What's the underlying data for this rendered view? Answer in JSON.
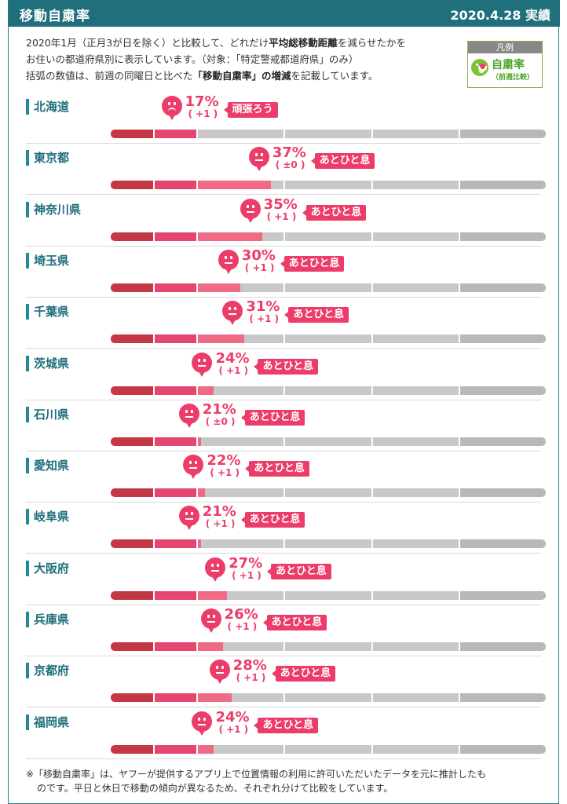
{
  "header": {
    "title": "移動自粛率",
    "date": "2020.4.28 実績"
  },
  "intro": {
    "line1_pre": "2020年1月（正月3が日を除く）と比較して、どれだけ",
    "line1_bold": "平均総移動距離",
    "line1_post": "を減らせたかを",
    "line2": "お住いの都道府県別に表示しています。（対象：「特定警戒都道府県」のみ）",
    "line3_pre": "括弧の数値は、前週の同曜日と比べた",
    "line3_bold": "「移動自粛率」の増減",
    "line3_post": "を記載しています。"
  },
  "legend": {
    "header": "凡例",
    "label": "自粛率",
    "sub": "（前週比較）"
  },
  "colors": {
    "header_bg": "#1f6f7d",
    "accent": "#ec3d6a",
    "seg1": "#c43845",
    "seg2": "#e4466f",
    "seg3": "#f06a86",
    "gray": "#c8c8c8",
    "gray2": "#b8b8b8"
  },
  "chart_data": {
    "type": "bar",
    "xlim": [
      0,
      100
    ],
    "categories": [
      "北海道",
      "東京都",
      "神奈川県",
      "埼玉県",
      "千葉県",
      "茨城県",
      "石川県",
      "愛知県",
      "岐阜県",
      "大阪府",
      "兵庫県",
      "京都府",
      "福岡県"
    ],
    "values": [
      17,
      37,
      35,
      30,
      31,
      24,
      21,
      22,
      21,
      27,
      26,
      28,
      24
    ],
    "diffs": [
      "( +1 )",
      "( ±0 )",
      "( +1 )",
      "( +1 )",
      "( +1 )",
      "( +1 )",
      "( ±0 )",
      "( +1 )",
      "( +1 )",
      "( +1 )",
      "( +1 )",
      "( +1 )",
      "( +1 )"
    ],
    "status": [
      "頑張ろう",
      "あとひと息",
      "あとひと息",
      "あとひと息",
      "あとひと息",
      "あとひと息",
      "あとひと息",
      "あとひと息",
      "あとひと息",
      "あとひと息",
      "あとひと息",
      "あとひと息",
      "あとひと息"
    ],
    "faces": [
      "sad",
      "neutral",
      "neutral",
      "neutral",
      "neutral",
      "neutral",
      "neutral",
      "neutral",
      "neutral",
      "neutral",
      "neutral",
      "neutral",
      "neutral"
    ]
  },
  "note": {
    "line1": "※「移動自粛率」は、ヤフーが提供するアプリ上で位置情報の利用に許可いただいたデータを元に推計したも",
    "line2": "のです。平日と休日で移動の傾向が異なるため、それぞれ分けて比較をしています。"
  }
}
